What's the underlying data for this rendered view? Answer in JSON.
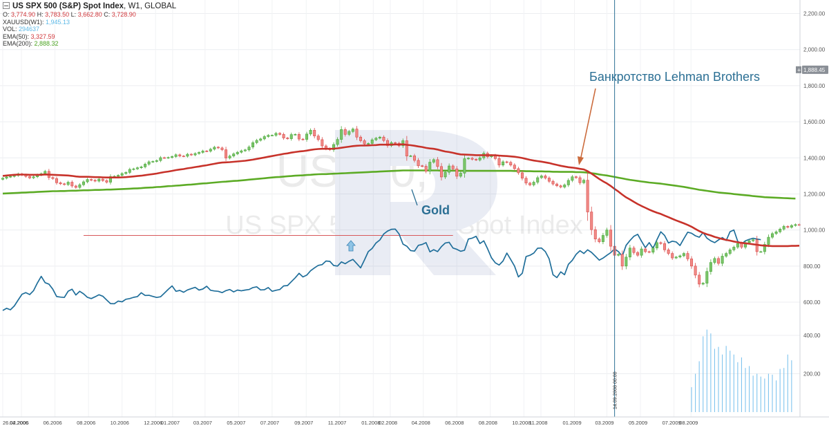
{
  "header": {
    "symbol": "US SPX 500 (S&P) Spot Index",
    "interval": "W1",
    "exchange": "GLOBAL"
  },
  "ohlc": {
    "o_label": "O:",
    "o": "3,774.90",
    "h_label": "H:",
    "h": "3,783.50",
    "l_label": "L:",
    "l": "3,662.80",
    "c_label": "C:",
    "c": "3,728.90"
  },
  "legend": [
    {
      "label": "XAUUSD(W1):",
      "value": "1,945.13"
    },
    {
      "label": "VOL:",
      "value": "294637"
    },
    {
      "label": "EMA(50):",
      "value": "3,327.59"
    },
    {
      "label": "EMA(200):",
      "value": "2,888.32"
    }
  ],
  "watermark": {
    "ticker": "US500, W",
    "name": "US SPX 500 (S&P) Spot Index"
  },
  "price_badge": "1,888.45",
  "colors": {
    "up": "#4aa83a",
    "down": "#d94b4b",
    "gold": "#1f6e9a",
    "ema50": "#c7322a",
    "ema200": "#5cab25",
    "volume": "#7fc4ee",
    "vline": "#2b6f94",
    "annotation": "#2b6f94",
    "arrow": "#cb6a3b"
  },
  "annotations": {
    "lehman": "Банкротство Lehman Brothers",
    "gold": "Gold",
    "vline_date": "14.09.2008 00:00"
  },
  "chart_data": {
    "type": "candlestick",
    "y_axis": {
      "ticks": [
        600,
        800,
        1000,
        1200,
        1400,
        1600,
        1800,
        2000,
        2200
      ],
      "tick_labels": [
        "600.00",
        "800.00",
        "1,000.00",
        "1,200.00",
        "1,400.00",
        "1,600.00",
        "1,800.00",
        "2,000.00",
        "2,200.00"
      ],
      "volume_ticks": [
        200,
        400
      ],
      "volume_tick_labels": [
        "200.00",
        "400.00"
      ]
    },
    "x_axis": {
      "labels": [
        "26.02.2006",
        "04.2006",
        "06.2006",
        "08.2006",
        "10.2006",
        "12.2006",
        "01.2007",
        "03.2007",
        "05.2007",
        "07.2007",
        "09.2007",
        "11.2007",
        "01.2008",
        "02.2008",
        "04.2008",
        "06.2008",
        "08.2008",
        "10.2008",
        "11.2008",
        "01.2009",
        "03.2009",
        "05.2009",
        "07.2009",
        "08.2009"
      ],
      "start_date": "2006-02-26",
      "end_date": "2009-08-30"
    },
    "spx_weekly_close": [
      1287,
      1294,
      1297,
      1302,
      1311,
      1305,
      1297,
      1289,
      1295,
      1305,
      1312,
      1325,
      1291,
      1285,
      1262,
      1256,
      1252,
      1265,
      1244,
      1236,
      1251,
      1267,
      1280,
      1276,
      1271,
      1282,
      1274,
      1265,
      1296,
      1298,
      1303,
      1313,
      1319,
      1336,
      1339,
      1345,
      1350,
      1365,
      1378,
      1380,
      1385,
      1401,
      1400,
      1402,
      1407,
      1417,
      1410,
      1409,
      1420,
      1416,
      1424,
      1430,
      1438,
      1437,
      1448,
      1459,
      1455,
      1445,
      1399,
      1410,
      1422,
      1431,
      1439,
      1444,
      1460,
      1484,
      1497,
      1505,
      1518,
      1525,
      1525,
      1536,
      1530,
      1510,
      1506,
      1529,
      1530,
      1504,
      1502,
      1532,
      1553,
      1521,
      1501,
      1466,
      1451,
      1445,
      1474,
      1502,
      1557,
      1530,
      1546,
      1560,
      1515,
      1495,
      1477,
      1480,
      1500,
      1509,
      1515,
      1496,
      1468,
      1484,
      1481,
      1467,
      1495,
      1410,
      1411,
      1386,
      1356,
      1353,
      1326,
      1376,
      1390,
      1352,
      1294,
      1320,
      1355,
      1339,
      1298,
      1315,
      1395,
      1398,
      1392,
      1388,
      1400,
      1425,
      1406,
      1413,
      1396,
      1360,
      1378,
      1375,
      1360,
      1340,
      1317,
      1287,
      1260,
      1250,
      1265,
      1290,
      1300,
      1288,
      1270,
      1255,
      1245,
      1238,
      1250,
      1275,
      1295,
      1290,
      1262,
      1276,
      1100,
      1002,
      950,
      935,
      970,
      1000,
      910,
      860,
      865,
      800,
      850,
      900,
      875,
      860,
      895,
      880,
      877,
      900,
      930,
      925,
      890,
      870,
      845,
      850,
      857,
      870,
      840,
      800,
      750,
      700,
      705,
      770,
      820,
      842,
      815,
      855,
      870,
      890,
      905,
      925,
      905,
      930,
      940,
      946,
      880,
      880,
      920,
      960,
      980,
      990,
      1005,
      1020,
      1015,
      1025,
      1030,
      1028
    ],
    "gold_weekly": [
      554,
      566,
      558,
      579,
      612,
      644,
      653,
      642,
      664,
      706,
      743,
      708,
      700,
      672,
      631,
      628,
      626,
      661,
      672,
      640,
      660,
      646,
      627,
      620,
      630,
      641,
      633,
      612,
      592,
      591,
      606,
      602,
      616,
      620,
      627,
      631,
      652,
      637,
      638,
      632,
      626,
      630,
      650,
      671,
      690,
      660,
      665,
      655,
      668,
      675,
      682,
      667,
      673,
      688,
      666,
      662,
      660,
      653,
      664,
      670,
      657,
      667,
      663,
      667,
      670,
      681,
      685,
      668,
      669,
      681,
      660,
      666,
      670,
      690,
      692,
      714,
      735,
      760,
      740,
      750,
      774,
      790,
      804,
      808,
      828,
      826,
      803,
      800,
      823,
      813,
      827,
      837,
      814,
      790,
      834,
      880,
      898,
      928,
      945,
      978,
      994,
      1004,
      1005,
      978,
      922,
      910,
      886,
      883,
      915,
      920,
      930,
      879,
      891,
      880,
      908,
      928,
      932,
      900,
      893,
      882,
      888,
      950,
      955,
      965,
      925,
      940,
      896,
      846,
      818,
      806,
      828,
      872,
      837,
      800,
      740,
      760,
      853,
      860,
      872,
      899,
      900,
      880,
      840,
      752,
      736,
      768,
      752,
      810,
      832,
      865,
      885,
      870,
      890,
      876,
      855,
      833,
      844,
      860,
      875,
      895,
      880,
      855,
      915,
      942,
      965,
      976,
      938,
      902,
      930,
      898,
      946,
      990,
      970,
      928,
      938,
      934,
      914,
      952,
      988,
      982,
      968,
      960,
      986,
      955,
      940,
      930,
      945,
      958,
      942,
      990,
      1000,
      937,
      922,
      940,
      948,
      954,
      950,
      946
    ],
    "ema50": [
      1300,
      1302,
      1304,
      1306,
      1307,
      1307,
      1307,
      1306,
      1306,
      1306,
      1306,
      1308,
      1307,
      1306,
      1305,
      1304,
      1303,
      1302,
      1300,
      1297,
      1295,
      1295,
      1295,
      1294,
      1293,
      1293,
      1292,
      1291,
      1291,
      1291,
      1291,
      1292,
      1293,
      1295,
      1297,
      1299,
      1301,
      1304,
      1307,
      1310,
      1313,
      1317,
      1321,
      1324,
      1328,
      1332,
      1335,
      1338,
      1342,
      1345,
      1349,
      1352,
      1356,
      1359,
      1363,
      1367,
      1371,
      1374,
      1375,
      1376,
      1378,
      1380,
      1382,
      1384,
      1387,
      1390,
      1394,
      1398,
      1402,
      1406,
      1410,
      1414,
      1418,
      1422,
      1425,
      1429,
      1432,
      1435,
      1437,
      1440,
      1444,
      1447,
      1449,
      1450,
      1450,
      1450,
      1451,
      1453,
      1456,
      1459,
      1462,
      1465,
      1467,
      1468,
      1468,
      1469,
      1470,
      1471,
      1473,
      1473,
      1473,
      1473,
      1474,
      1474,
      1475,
      1472,
      1470,
      1467,
      1463,
      1460,
      1455,
      1452,
      1450,
      1446,
      1440,
      1435,
      1432,
      1428,
      1423,
      1419,
      1418,
      1417,
      1416,
      1415,
      1415,
      1415,
      1415,
      1415,
      1414,
      1412,
      1411,
      1410,
      1408,
      1406,
      1403,
      1399,
      1394,
      1389,
      1385,
      1382,
      1379,
      1375,
      1371,
      1366,
      1361,
      1356,
      1352,
      1348,
      1346,
      1343,
      1339,
      1336,
      1326,
      1313,
      1298,
      1283,
      1270,
      1258,
      1244,
      1228,
      1213,
      1196,
      1181,
      1169,
      1156,
      1144,
      1133,
      1123,
      1113,
      1104,
      1096,
      1089,
      1080,
      1071,
      1062,
      1053,
      1045,
      1037,
      1028,
      1018,
      1006,
      994,
      984,
      976,
      970,
      962,
      956,
      950,
      945,
      941,
      936,
      932,
      929,
      926,
      924,
      921,
      918,
      915,
      913,
      912,
      911,
      911,
      911,
      911,
      911,
      912,
      912,
      913
    ],
    "ema200": [
      1202,
      1203,
      1204,
      1205,
      1206,
      1207,
      1208,
      1209,
      1210,
      1211,
      1212,
      1213,
      1214,
      1215,
      1215,
      1216,
      1216,
      1217,
      1218,
      1218,
      1219,
      1220,
      1220,
      1221,
      1222,
      1222,
      1223,
      1224,
      1224,
      1225,
      1226,
      1227,
      1228,
      1229,
      1230,
      1231,
      1232,
      1234,
      1235,
      1236,
      1238,
      1239,
      1241,
      1243,
      1244,
      1246,
      1247,
      1249,
      1251,
      1252,
      1254,
      1256,
      1258,
      1259,
      1261,
      1263,
      1265,
      1267,
      1268,
      1270,
      1272,
      1273,
      1275,
      1277,
      1279,
      1281,
      1283,
      1285,
      1287,
      1289,
      1291,
      1293,
      1294,
      1296,
      1298,
      1299,
      1301,
      1302,
      1303,
      1305,
      1306,
      1308,
      1309,
      1310,
      1310,
      1311,
      1312,
      1313,
      1314,
      1315,
      1316,
      1317,
      1318,
      1319,
      1320,
      1321,
      1322,
      1323,
      1324,
      1325,
      1326,
      1327,
      1328,
      1329,
      1330,
      1330,
      1330,
      1330,
      1330,
      1330,
      1330,
      1330,
      1330,
      1330,
      1329,
      1329,
      1329,
      1329,
      1329,
      1328,
      1328,
      1328,
      1328,
      1328,
      1328,
      1328,
      1328,
      1328,
      1328,
      1328,
      1328,
      1328,
      1328,
      1327,
      1327,
      1327,
      1326,
      1326,
      1325,
      1325,
      1325,
      1324,
      1324,
      1323,
      1323,
      1322,
      1322,
      1322,
      1322,
      1321,
      1321,
      1320,
      1318,
      1315,
      1312,
      1308,
      1305,
      1302,
      1298,
      1294,
      1290,
      1286,
      1282,
      1278,
      1275,
      1272,
      1269,
      1266,
      1263,
      1261,
      1259,
      1257,
      1254,
      1251,
      1248,
      1245,
      1242,
      1239,
      1235,
      1231,
      1227,
      1223,
      1220,
      1217,
      1214,
      1211,
      1208,
      1206,
      1204,
      1202,
      1199,
      1197,
      1195,
      1193,
      1191,
      1188,
      1186,
      1184,
      1182,
      1181,
      1180,
      1179,
      1178,
      1177,
      1176,
      1175,
      1174
    ],
    "volume": [
      {
        "week": 179,
        "value": 130
      },
      {
        "week": 180,
        "value": 200
      },
      {
        "week": 181,
        "value": 265
      },
      {
        "week": 182,
        "value": 395
      },
      {
        "week": 183,
        "value": 430
      },
      {
        "week": 184,
        "value": 410
      },
      {
        "week": 185,
        "value": 330
      },
      {
        "week": 186,
        "value": 340
      },
      {
        "week": 187,
        "value": 300
      },
      {
        "week": 188,
        "value": 345
      },
      {
        "week": 189,
        "value": 320
      },
      {
        "week": 190,
        "value": 300
      },
      {
        "week": 191,
        "value": 260
      },
      {
        "week": 192,
        "value": 285
      },
      {
        "week": 193,
        "value": 230
      },
      {
        "week": 194,
        "value": 240
      },
      {
        "week": 195,
        "value": 190
      },
      {
        "week": 196,
        "value": 200
      },
      {
        "week": 197,
        "value": 185
      },
      {
        "week": 198,
        "value": 175
      },
      {
        "week": 199,
        "value": 200
      },
      {
        "week": 200,
        "value": 195
      },
      {
        "week": 201,
        "value": 165
      },
      {
        "week": 202,
        "value": 225
      },
      {
        "week": 203,
        "value": 230
      },
      {
        "week": 204,
        "value": 300
      },
      {
        "week": 205,
        "value": 270
      }
    ],
    "resistance_level": 970,
    "resistance_weeks": [
      21,
      117
    ],
    "lehman_week": 159,
    "event_date": "14.09.2008"
  }
}
